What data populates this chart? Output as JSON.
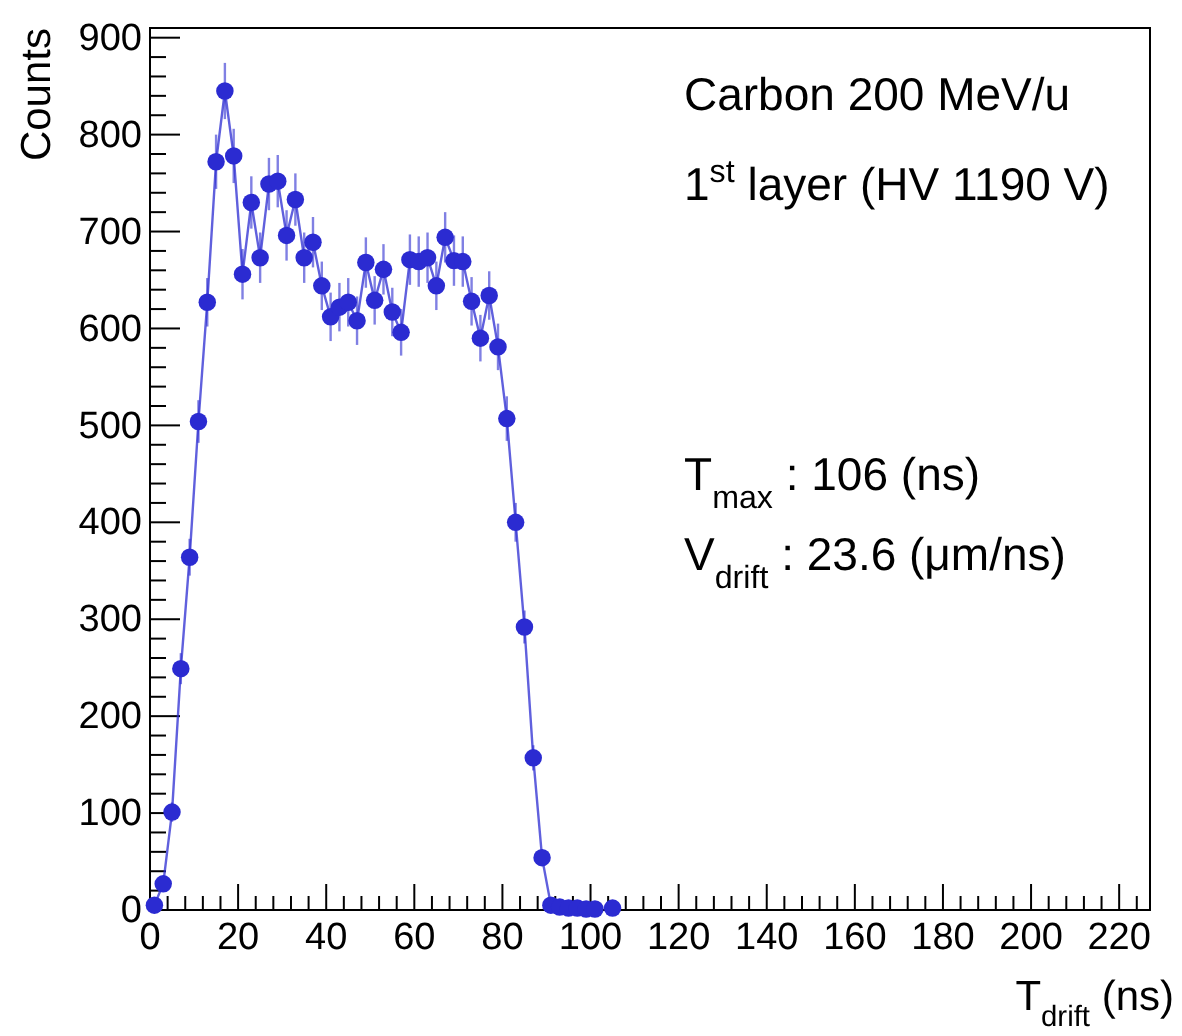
{
  "chart_data": {
    "type": "line",
    "xlabel": "T$_{drift}$ (ns)",
    "ylabel": "Counts",
    "annotations": [
      "Carbon 200 MeV/u",
      "1$^{st}$ layer (HV 1190 V)",
      "T$_{max}$ : 106 (ns)",
      "V$_{drift}$ : 23.6 (μm/ns)"
    ],
    "x": [
      1,
      3,
      5,
      7,
      9,
      11,
      13,
      15,
      17,
      19,
      21,
      23,
      25,
      27,
      29,
      31,
      33,
      35,
      37,
      39,
      41,
      43,
      45,
      47,
      49,
      51,
      53,
      55,
      57,
      59,
      61,
      63,
      65,
      67,
      69,
      71,
      73,
      75,
      77,
      79,
      81,
      83,
      85,
      87,
      89,
      91,
      93,
      95,
      97,
      99,
      101,
      103,
      105
    ],
    "series": [
      {
        "color": "#2b2bd1",
        "marker": "circle",
        "values": [
          5,
          27,
          101,
          249,
          364,
          504,
          627,
          772,
          845,
          778,
          656,
          730,
          673,
          749,
          752,
          696,
          733,
          673,
          689,
          644,
          612,
          622,
          627,
          608,
          668,
          629,
          661,
          617,
          596,
          671,
          669,
          673,
          644,
          694,
          670,
          669,
          628,
          590,
          634,
          581,
          507,
          400,
          292,
          157,
          54,
          5,
          3,
          2,
          2,
          1,
          1,
          null,
          2
        ],
        "errors": [
          2,
          5,
          10,
          16,
          19,
          22,
          25,
          28,
          29,
          28,
          26,
          27,
          26,
          27,
          27,
          26,
          27,
          26,
          26,
          25,
          25,
          25,
          25,
          25,
          26,
          25,
          26,
          25,
          24,
          26,
          26,
          26,
          25,
          26,
          26,
          26,
          25,
          24,
          25,
          24,
          23,
          20,
          17,
          13,
          7,
          2,
          2,
          1,
          1,
          1,
          1,
          null,
          1
        ]
      }
    ],
    "xlim": [
      0,
      227
    ],
    "ylim": [
      0,
      910
    ],
    "xticks": [
      0,
      {
        "value": 4,
        "label": null
      },
      {
        "value": 8,
        "label": null
      },
      {
        "value": 12,
        "label": null
      },
      {
        "value": 16,
        "label": null
      },
      20,
      {
        "value": 24,
        "label": null
      },
      {
        "value": 28,
        "label": null
      },
      {
        "value": 32,
        "label": null
      },
      {
        "value": 36,
        "label": null
      },
      40,
      {
        "value": 44,
        "label": null
      },
      {
        "value": 48,
        "label": null
      },
      {
        "value": 52,
        "label": null
      },
      {
        "value": 56,
        "label": null
      },
      60,
      {
        "value": 64,
        "label": null
      },
      {
        "value": 68,
        "label": null
      },
      {
        "value": 72,
        "label": null
      },
      {
        "value": 76,
        "label": null
      },
      80,
      {
        "value": 84,
        "label": null
      },
      {
        "value": 88,
        "label": null
      },
      {
        "value": 92,
        "label": null
      },
      {
        "value": 96,
        "label": null
      },
      100,
      {
        "value": 104,
        "label": null
      },
      {
        "value": 108,
        "label": null
      },
      {
        "value": 112,
        "label": null
      },
      {
        "value": 116,
        "label": null
      },
      120,
      {
        "value": 124,
        "label": null
      },
      {
        "value": 128,
        "label": null
      },
      {
        "value": 132,
        "label": null
      },
      {
        "value": 136,
        "label": null
      },
      140,
      {
        "value": 144,
        "label": null
      },
      {
        "value": 148,
        "label": null
      },
      {
        "value": 152,
        "label": null
      },
      {
        "value": 156,
        "label": null
      },
      160,
      {
        "value": 164,
        "label": null
      },
      {
        "value": 168,
        "label": null
      },
      {
        "value": 172,
        "label": null
      },
      {
        "value": 176,
        "label": null
      },
      180,
      {
        "value": 184,
        "label": null
      },
      {
        "value": 188,
        "label": null
      },
      {
        "value": 192,
        "label": null
      },
      {
        "value": 196,
        "label": null
      },
      200,
      {
        "value": 204,
        "label": null
      },
      {
        "value": 208,
        "label": null
      },
      {
        "value": 212,
        "label": null
      },
      {
        "value": 216,
        "label": null
      },
      220,
      {
        "value": 224,
        "label": null
      }
    ],
    "yticks": [
      0,
      {
        "value": 20,
        "label": null
      },
      {
        "value": 40,
        "label": null
      },
      {
        "value": 60,
        "label": null
      },
      {
        "value": 80,
        "label": null
      },
      100,
      {
        "value": 120,
        "label": null
      },
      {
        "value": 140,
        "label": null
      },
      {
        "value": 160,
        "label": null
      },
      {
        "value": 180,
        "label": null
      },
      200,
      {
        "value": 220,
        "label": null
      },
      {
        "value": 240,
        "label": null
      },
      {
        "value": 260,
        "label": null
      },
      {
        "value": 280,
        "label": null
      },
      300,
      {
        "value": 320,
        "label": null
      },
      {
        "value": 340,
        "label": null
      },
      {
        "value": 360,
        "label": null
      },
      {
        "value": 380,
        "label": null
      },
      400,
      {
        "value": 420,
        "label": null
      },
      {
        "value": 440,
        "label": null
      },
      {
        "value": 460,
        "label": null
      },
      {
        "value": 480,
        "label": null
      },
      500,
      {
        "value": 520,
        "label": null
      },
      {
        "value": 540,
        "label": null
      },
      {
        "value": 560,
        "label": null
      },
      {
        "value": 580,
        "label": null
      },
      600,
      {
        "value": 620,
        "label": null
      },
      {
        "value": 640,
        "label": null
      },
      {
        "value": 660,
        "label": null
      },
      {
        "value": 680,
        "label": null
      },
      700,
      {
        "value": 720,
        "label": null
      },
      {
        "value": 740,
        "label": null
      },
      {
        "value": 760,
        "label": null
      },
      {
        "value": 780,
        "label": null
      },
      800,
      {
        "value": 820,
        "label": null
      },
      {
        "value": 840,
        "label": null
      },
      {
        "value": 860,
        "label": null
      },
      {
        "value": 880,
        "label": null
      },
      900
    ]
  }
}
